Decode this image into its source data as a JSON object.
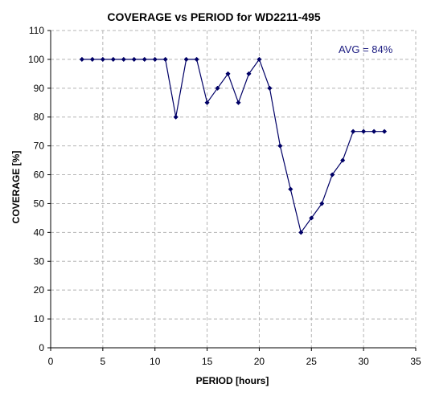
{
  "chart_data": {
    "type": "line",
    "title": "COVERAGE vs PERIOD for WD2211-495",
    "xlabel": "PERIOD [hours]",
    "ylabel": "COVERAGE [%]",
    "xlim": [
      0,
      35
    ],
    "ylim": [
      0,
      110
    ],
    "x_ticks": [
      0,
      5,
      10,
      15,
      20,
      25,
      30,
      35
    ],
    "y_ticks": [
      0,
      10,
      20,
      30,
      40,
      50,
      60,
      70,
      80,
      90,
      100,
      110
    ],
    "grid": true,
    "legend": "none",
    "annotation": "AVG = 84%",
    "series": [
      {
        "color": "#000066",
        "marker": "diamond",
        "x": [
          3,
          4,
          5,
          6,
          7,
          8,
          9,
          10,
          11,
          12,
          13,
          14,
          15,
          16,
          17,
          18,
          19,
          20,
          21,
          22,
          23,
          24,
          25,
          26,
          27,
          28,
          29,
          30,
          31,
          32
        ],
        "y": [
          100,
          100,
          100,
          100,
          100,
          100,
          100,
          100,
          100,
          80,
          100,
          100,
          85,
          90,
          95,
          85,
          95,
          100,
          90,
          70,
          55,
          40,
          45,
          50,
          60,
          65,
          75,
          75,
          75,
          75
        ]
      }
    ]
  },
  "colors": {
    "line": "#000066",
    "annotation": "#1a1a80",
    "grid": "#b4b4b4",
    "axis": "#000000"
  }
}
